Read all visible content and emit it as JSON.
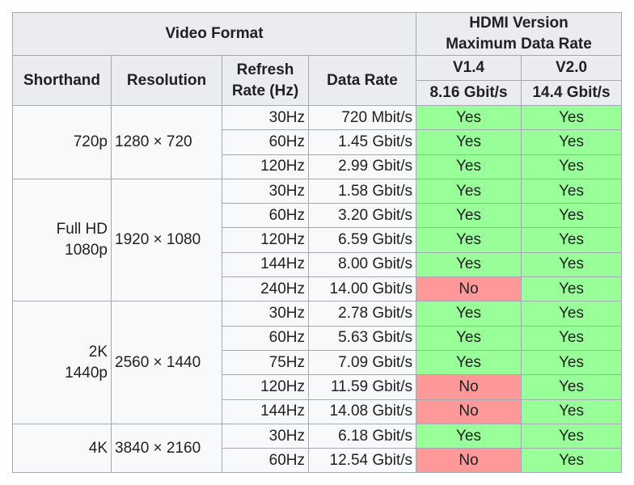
{
  "header": {
    "group1": "Video Format",
    "group2": [
      "HDMI Version",
      "Maximum Data Rate"
    ],
    "columns": [
      [
        "Shorthand"
      ],
      [
        "Resolution"
      ],
      [
        "Refresh",
        "Rate (Hz)"
      ],
      [
        "Data Rate"
      ]
    ],
    "versions": [
      "V1.4",
      "V2.0"
    ],
    "max_rates": [
      "8.16 Gbit/s",
      "14.4 Gbit/s"
    ]
  },
  "groups": [
    {
      "shorthand": [
        "720p"
      ],
      "resolution": "1280 × 720",
      "rows": [
        [
          "30Hz",
          "720 Mbit/s",
          {
            "text": "Yes",
            "color": "#99ff99"
          },
          {
            "text": "Yes",
            "color": "#99ff99"
          }
        ],
        [
          "60Hz",
          "1.45 Gbit/s",
          {
            "text": "Yes",
            "color": "#99ff99"
          },
          {
            "text": "Yes",
            "color": "#99ff99"
          }
        ],
        [
          "120Hz",
          "2.99 Gbit/s",
          {
            "text": "Yes",
            "color": "#99ff99"
          },
          {
            "text": "Yes",
            "color": "#99ff99"
          }
        ]
      ]
    },
    {
      "shorthand": [
        "Full HD",
        "1080p"
      ],
      "resolution": "1920 × 1080",
      "rows": [
        [
          "30Hz",
          "1.58 Gbit/s",
          {
            "text": "Yes",
            "color": "#99ff99"
          },
          {
            "text": "Yes",
            "color": "#99ff99"
          }
        ],
        [
          "60Hz",
          "3.20 Gbit/s",
          {
            "text": "Yes",
            "color": "#99ff99"
          },
          {
            "text": "Yes",
            "color": "#99ff99"
          }
        ],
        [
          "120Hz",
          "6.59 Gbit/s",
          {
            "text": "Yes",
            "color": "#99ff99"
          },
          {
            "text": "Yes",
            "color": "#99ff99"
          }
        ],
        [
          "144Hz",
          "8.00 Gbit/s",
          {
            "text": "Yes",
            "color": "#99ff99"
          },
          {
            "text": "Yes",
            "color": "#99ff99"
          }
        ],
        [
          "240Hz",
          "14.00 Gbit/s",
          {
            "text": "No",
            "color": "#ff9999"
          },
          {
            "text": "Yes",
            "color": "#99ff99"
          }
        ]
      ]
    },
    {
      "shorthand": [
        "2K",
        "1440p"
      ],
      "resolution": "2560 × 1440",
      "rows": [
        [
          "30Hz",
          "2.78 Gbit/s",
          {
            "text": "Yes",
            "color": "#99ff99"
          },
          {
            "text": "Yes",
            "color": "#99ff99"
          }
        ],
        [
          "60Hz",
          "5.63 Gbit/s",
          {
            "text": "Yes",
            "color": "#99ff99"
          },
          {
            "text": "Yes",
            "color": "#99ff99"
          }
        ],
        [
          "75Hz",
          "7.09 Gbit/s",
          {
            "text": "Yes",
            "color": "#99ff99"
          },
          {
            "text": "Yes",
            "color": "#99ff99"
          }
        ],
        [
          "120Hz",
          "11.59 Gbit/s",
          {
            "text": "No",
            "color": "#ff9999"
          },
          {
            "text": "Yes",
            "color": "#99ff99"
          }
        ],
        [
          "144Hz",
          "14.08 Gbit/s",
          {
            "text": "No",
            "color": "#ff9999"
          },
          {
            "text": "Yes",
            "color": "#99ff99"
          }
        ]
      ]
    },
    {
      "shorthand": [
        "4K"
      ],
      "resolution": "3840 × 2160",
      "rows": [
        [
          "30Hz",
          "6.18 Gbit/s",
          {
            "text": "Yes",
            "color": "#99ff99"
          },
          {
            "text": "Yes",
            "color": "#99ff99"
          }
        ],
        [
          "60Hz",
          "12.54 Gbit/s",
          {
            "text": "No",
            "color": "#ff9999"
          },
          {
            "text": "Yes",
            "color": "#99ff99"
          }
        ]
      ]
    }
  ]
}
